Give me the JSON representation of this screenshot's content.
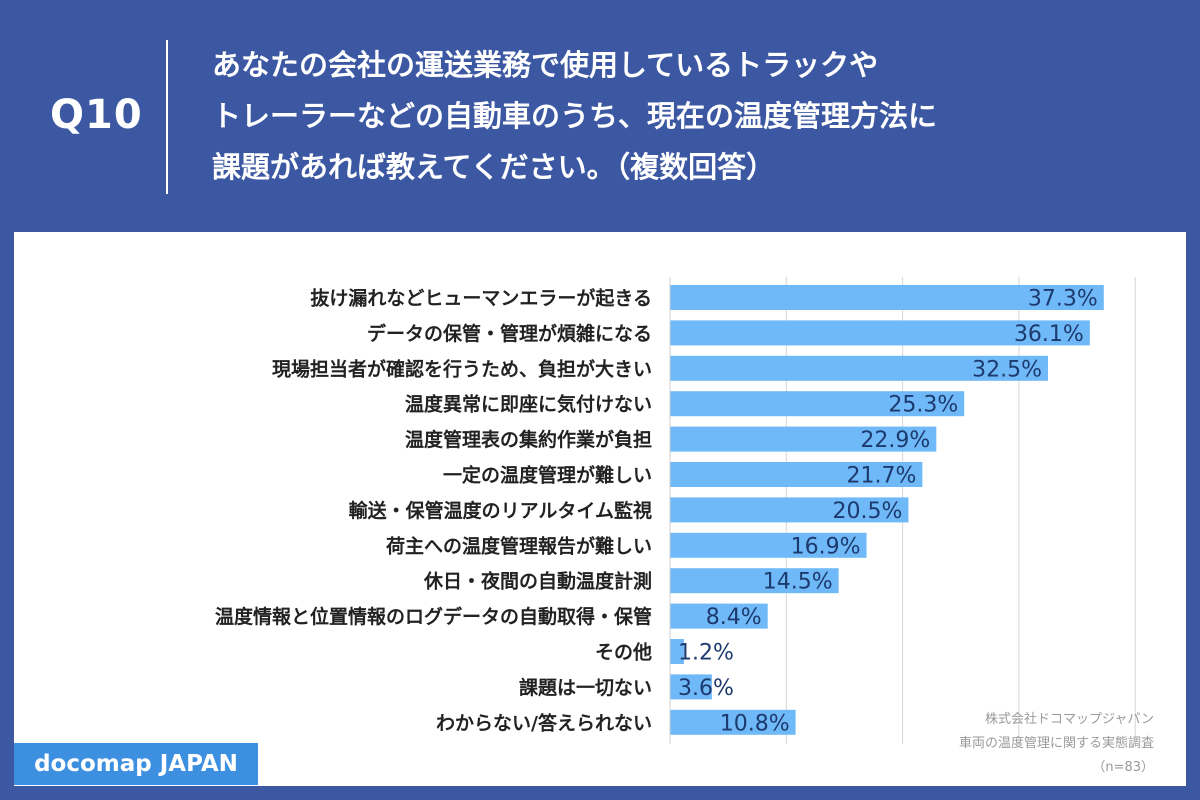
{
  "header": {
    "qnum": "Q10",
    "question_lines": [
      "あなたの会社の運送業務で使用しているトラックや",
      "トレーラーなどの自動車のうち、現在の温度管理方法に",
      "課題があれば教えてください。（複数回答）"
    ]
  },
  "brand": "docomap JAPAN",
  "source": {
    "company": "株式会社ドコマップジャパン",
    "survey": "車両の温度管理に関する実態調査",
    "n": "（n=83）"
  },
  "colors": {
    "background": "#3d58a3",
    "bar": "#6fb9f8",
    "value_text": "#1d3a6e",
    "brand_box": "#3d8fe0"
  },
  "chart_data": {
    "type": "bar",
    "orientation": "horizontal",
    "categories": [
      "抜け漏れなどヒューマンエラーが起きる",
      "データの保管・管理が煩雑になる",
      "現場担当者が確認を行うため、負担が大きい",
      "温度異常に即座に気付けない",
      "温度管理表の集約作業が負担",
      "一定の温度管理が難しい",
      "輸送・保管温度のリアルタイム監視",
      "荷主への温度管理報告が難しい",
      "休日・夜間の自動温度計測",
      "温度情報と位置情報のログデータの自動取得・保管",
      "その他",
      "課題は一切ない",
      "わからない/答えられない"
    ],
    "values": [
      37.3,
      36.1,
      32.5,
      25.3,
      22.9,
      21.7,
      20.5,
      16.9,
      14.5,
      8.4,
      1.2,
      3.6,
      10.8
    ],
    "value_labels": [
      "37.3%",
      "36.1%",
      "32.5%",
      "25.3%",
      "22.9%",
      "21.7%",
      "20.5%",
      "16.9%",
      "14.5%",
      "8.4%",
      "1.2%",
      "3.6%",
      "10.8%"
    ],
    "xlim": [
      0,
      40
    ],
    "grid": true,
    "gridline_step": 10
  }
}
